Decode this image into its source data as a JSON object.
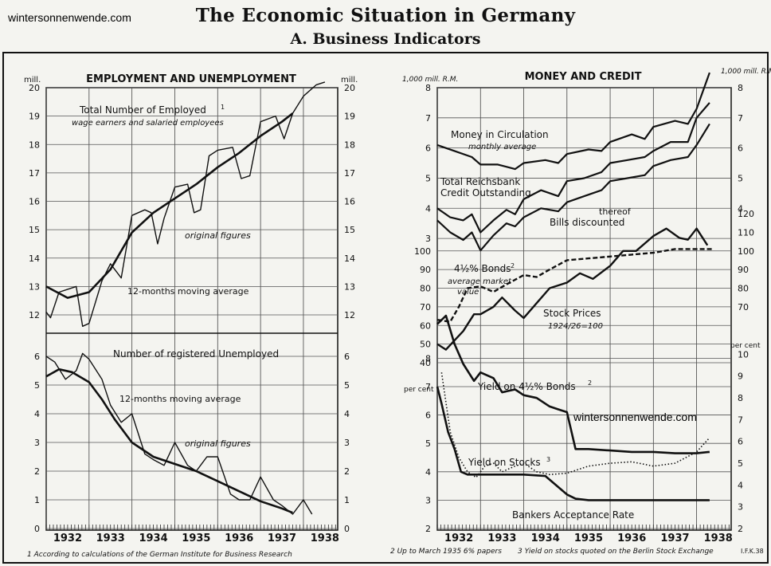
{
  "watermarks": [
    "wintersonnenwende.com",
    "wintersonnenwende.com"
  ],
  "header": {
    "title": "The Economic Situation in Germany",
    "subtitle": "A. Business Indicators"
  },
  "years": [
    "1932",
    "1933",
    "1934",
    "1935",
    "1936",
    "1937",
    "1938"
  ],
  "footnotes": {
    "left": "1 According to calculations of the German Institute for Business Research",
    "right_1": "2 Up to March 1935 6% papers",
    "right_3": "3 Yield on stocks quoted on the Berlin Stock Exchange",
    "mark": "I.F.K.38"
  },
  "chart_data": [
    {
      "type": "line",
      "panel_title": "EMPLOYMENT AND UNEMPLOYMENT",
      "unit_left": "mill.",
      "unit_right": "mill.",
      "ylim": [
        12,
        20
      ],
      "ticks": [
        12,
        13,
        14,
        15,
        16,
        17,
        18,
        19,
        20
      ],
      "series": [
        {
          "name": "Total Number of Employed",
          "note": "wage earners and salaried employees",
          "x": [
            1932.0,
            1932.1,
            1932.3,
            1932.5,
            1932.7,
            1932.85,
            1933.0,
            1933.3,
            1933.5,
            1933.75,
            1934.0,
            1934.3,
            1934.45,
            1934.6,
            1934.75,
            1935.0,
            1935.3,
            1935.45,
            1935.6,
            1935.8,
            1936.0,
            1936.35,
            1936.55,
            1936.75,
            1937.0,
            1937.35,
            1937.55,
            1937.75,
            1938.0,
            1938.3,
            1938.5
          ],
          "y": [
            12.1,
            11.9,
            12.8,
            12.9,
            13.0,
            11.6,
            11.7,
            13.2,
            13.8,
            13.3,
            15.5,
            15.7,
            15.6,
            14.5,
            15.4,
            16.5,
            16.6,
            15.6,
            15.7,
            17.6,
            17.8,
            17.9,
            16.8,
            16.9,
            18.8,
            19.0,
            18.2,
            19.1,
            19.7,
            20.1,
            20.2
          ]
        },
        {
          "name": "12-months moving average",
          "x": [
            1932.0,
            1932.5,
            1933.0,
            1933.5,
            1934.0,
            1934.5,
            1935.0,
            1935.5,
            1936.0,
            1936.5,
            1937.0,
            1937.5,
            1937.75
          ],
          "y": [
            13.0,
            12.6,
            12.8,
            13.6,
            14.9,
            15.6,
            16.1,
            16.6,
            17.2,
            17.7,
            18.3,
            18.8,
            19.1
          ]
        }
      ],
      "labels": {
        "employed": "Total Number of Employed",
        "employed_sup": "1",
        "employed_note": "wage earners and salaried employees",
        "original": "original figures",
        "moving": "12-months moving average"
      }
    },
    {
      "type": "line",
      "unit_left": "",
      "unit_right": "",
      "ylim": [
        0,
        6
      ],
      "ticks": [
        0,
        1,
        2,
        3,
        4,
        5,
        6
      ],
      "series": [
        {
          "name": "Number of registered Unemployed",
          "x": [
            1932.0,
            1932.2,
            1932.45,
            1932.7,
            1932.85,
            1933.0,
            1933.3,
            1933.5,
            1933.75,
            1934.0,
            1934.3,
            1934.5,
            1934.75,
            1935.0,
            1935.3,
            1935.5,
            1935.75,
            1936.0,
            1936.3,
            1936.5,
            1936.75,
            1937.0,
            1937.3,
            1937.5,
            1937.75,
            1938.0,
            1938.2
          ],
          "y": [
            6.0,
            5.8,
            5.2,
            5.5,
            6.1,
            5.9,
            5.2,
            4.3,
            3.7,
            4.0,
            2.6,
            2.4,
            2.2,
            3.0,
            2.2,
            2.0,
            2.5,
            2.5,
            1.2,
            1.0,
            1.0,
            1.8,
            1.0,
            0.8,
            0.5,
            1.0,
            0.5
          ]
        },
        {
          "name": "12-months moving average",
          "x": [
            1932.0,
            1932.3,
            1932.6,
            1933.0,
            1933.3,
            1933.6,
            1934.0,
            1934.5,
            1935.0,
            1935.5,
            1936.0,
            1936.5,
            1937.0,
            1937.5,
            1937.75
          ],
          "y": [
            5.3,
            5.55,
            5.45,
            5.1,
            4.5,
            3.8,
            3.0,
            2.5,
            2.25,
            2.0,
            1.65,
            1.3,
            0.95,
            0.7,
            0.55
          ]
        }
      ],
      "labels": {
        "unemployed": "Number of registered Unemployed",
        "moving": "12-months moving average",
        "original": "original figures"
      }
    },
    {
      "type": "line",
      "panel_title": "MONEY AND CREDIT",
      "unit_left": "1,000 mill. R.M.",
      "unit_right": "1,000 mill. R.M.",
      "ylim": [
        2.5,
        8
      ],
      "ticks_left": [
        3,
        4,
        5,
        6,
        7,
        8
      ],
      "ticks_right": [
        4,
        5,
        6,
        7,
        8
      ],
      "series": [
        {
          "name": "Money in Circulation",
          "x": [
            1932.0,
            1932.4,
            1932.8,
            1933.0,
            1933.4,
            1933.8,
            1934.0,
            1934.5,
            1934.8,
            1935.0,
            1935.5,
            1935.8,
            1936.0,
            1936.5,
            1936.8,
            1937.0,
            1937.5,
            1937.8,
            1938.0,
            1938.3
          ],
          "y": [
            6.1,
            5.9,
            5.7,
            5.45,
            5.45,
            5.3,
            5.5,
            5.6,
            5.5,
            5.8,
            5.95,
            5.9,
            6.2,
            6.45,
            6.3,
            6.7,
            6.9,
            6.8,
            7.3,
            8.5
          ]
        },
        {
          "name": "Total Reichsbank Credit Outstanding",
          "x": [
            1932.0,
            1932.3,
            1932.6,
            1932.8,
            1933.0,
            1933.3,
            1933.6,
            1933.8,
            1934.0,
            1934.4,
            1934.8,
            1935.0,
            1935.4,
            1935.8,
            1936.0,
            1936.4,
            1936.8,
            1937.0,
            1937.4,
            1937.8,
            1938.0,
            1938.3
          ],
          "y": [
            4.0,
            3.7,
            3.6,
            3.8,
            3.2,
            3.6,
            3.95,
            3.8,
            4.3,
            4.6,
            4.4,
            4.9,
            5.0,
            5.2,
            5.5,
            5.6,
            5.7,
            5.9,
            6.2,
            6.2,
            7.0,
            7.5
          ]
        },
        {
          "name": "Bills discounted",
          "x": [
            1932.0,
            1932.3,
            1932.6,
            1932.8,
            1933.0,
            1933.3,
            1933.6,
            1933.8,
            1934.0,
            1934.4,
            1934.8,
            1935.0,
            1935.4,
            1935.8,
            1936.0,
            1936.4,
            1936.8,
            1937.0,
            1937.4,
            1937.8,
            1938.0,
            1938.3
          ],
          "y": [
            3.6,
            3.2,
            2.95,
            3.2,
            2.6,
            3.1,
            3.5,
            3.4,
            3.7,
            4.0,
            3.9,
            4.2,
            4.4,
            4.6,
            4.9,
            5.0,
            5.1,
            5.4,
            5.6,
            5.7,
            6.1,
            6.8
          ]
        }
      ],
      "labels": {
        "money": "Money in Circulation",
        "money_note": "monthly average",
        "credit_1": "Total Reichsbank",
        "credit_2": "Credit Outstanding",
        "thereof": "thereof",
        "bills": "Bills discounted"
      }
    },
    {
      "type": "line",
      "ylim": [
        40,
        120
      ],
      "ticks_left": [
        40,
        50,
        60,
        70,
        80,
        90,
        100
      ],
      "ticks_right": [
        70,
        80,
        90,
        100,
        110,
        120
      ],
      "series": [
        {
          "name": "4½% Bonds",
          "note": "average market value",
          "style": "dashed",
          "x": [
            1932.0,
            1932.3,
            1932.5,
            1932.7,
            1933.0,
            1933.3,
            1933.6,
            1934.0,
            1934.3,
            1934.6,
            1935.0,
            1935.5,
            1936.0,
            1936.5,
            1937.0,
            1937.5,
            1938.0,
            1938.4
          ],
          "y": [
            63,
            62,
            70,
            80,
            81,
            78,
            82,
            87,
            86,
            90,
            95,
            96,
            97,
            98,
            99,
            101,
            101,
            101
          ]
        },
        {
          "name": "Stock Prices",
          "note": "1924/26=100",
          "x": [
            1932.0,
            1932.2,
            1932.4,
            1932.6,
            1932.85,
            1933.0,
            1933.3,
            1933.5,
            1933.8,
            1934.0,
            1934.3,
            1934.6,
            1935.0,
            1935.3,
            1935.6,
            1936.0,
            1936.3,
            1936.6,
            1937.0,
            1937.3,
            1937.6,
            1937.8,
            1938.0,
            1938.25
          ],
          "y": [
            50,
            47,
            52,
            57,
            66,
            66,
            70,
            75,
            68,
            64,
            72,
            80,
            83,
            88,
            85,
            92,
            100,
            100,
            108,
            112,
            107,
            106,
            112,
            103
          ]
        }
      ],
      "labels": {
        "bonds": "4½% Bonds",
        "bonds_sup": "2",
        "bonds_note_1": "average market",
        "bonds_note_2": "value",
        "stocks": "Stock Prices",
        "stocks_note": "1924/26=100"
      }
    },
    {
      "type": "line",
      "unit_left": "per cent",
      "unit_right": "per cent",
      "ylim": [
        2,
        10
      ],
      "ticks_left": [
        2,
        3,
        4,
        5,
        6,
        7,
        8
      ],
      "ticks_right": [
        2,
        3,
        4,
        5,
        6,
        7,
        8,
        9,
        10
      ],
      "series": [
        {
          "name": "Yield on 4½% Bonds",
          "x": [
            1932.0,
            1932.2,
            1932.4,
            1932.6,
            1932.85,
            1933.0,
            1933.3,
            1933.5,
            1933.8,
            1934.0,
            1934.3,
            1934.6,
            1934.8,
            1935.0,
            1935.2,
            1935.5,
            1936.0,
            1936.5,
            1937.0,
            1937.5,
            1938.0,
            1938.3
          ],
          "y": [
            9.2,
            9.5,
            8.5,
            7.8,
            7.2,
            7.5,
            7.3,
            6.8,
            6.9,
            6.7,
            6.6,
            6.3,
            6.2,
            6.1,
            4.8,
            4.8,
            4.75,
            4.7,
            4.7,
            4.65,
            4.65,
            4.7
          ]
        },
        {
          "name": "Yield on Stocks",
          "style": "dotted",
          "x": [
            1932.1,
            1932.3,
            1932.5,
            1932.7,
            1932.9,
            1933.1,
            1933.3,
            1933.5,
            1933.8,
            1934.0,
            1934.3,
            1934.6,
            1935.0,
            1935.5,
            1936.0,
            1936.5,
            1937.0,
            1937.5,
            1938.0,
            1938.3
          ],
          "y": [
            7.5,
            5.4,
            4.5,
            4.0,
            3.8,
            4.2,
            4.3,
            4.0,
            4.2,
            4.3,
            4.0,
            3.9,
            3.95,
            4.2,
            4.3,
            4.35,
            4.2,
            4.3,
            4.7,
            5.2
          ]
        },
        {
          "name": "Bankers Acceptance Rate",
          "x": [
            1932.0,
            1932.1,
            1932.25,
            1932.4,
            1932.55,
            1932.7,
            1933.0,
            1933.5,
            1934.0,
            1934.5,
            1935.0,
            1935.2,
            1935.5,
            1936.0,
            1936.5,
            1937.0,
            1937.5,
            1938.0,
            1938.3
          ],
          "y": [
            7.0,
            6.4,
            5.4,
            4.8,
            4.0,
            3.9,
            3.9,
            3.9,
            3.9,
            3.85,
            3.2,
            3.05,
            3.0,
            3.0,
            3.0,
            3.0,
            3.0,
            3.0,
            3.0
          ]
        }
      ],
      "labels": {
        "bond_yield": "Yield on 4½% Bonds",
        "bond_yield_sup": "2",
        "stock_yield": "Yield on Stocks",
        "stock_yield_sup": "3",
        "acceptance": "Bankers Acceptance Rate"
      }
    }
  ]
}
